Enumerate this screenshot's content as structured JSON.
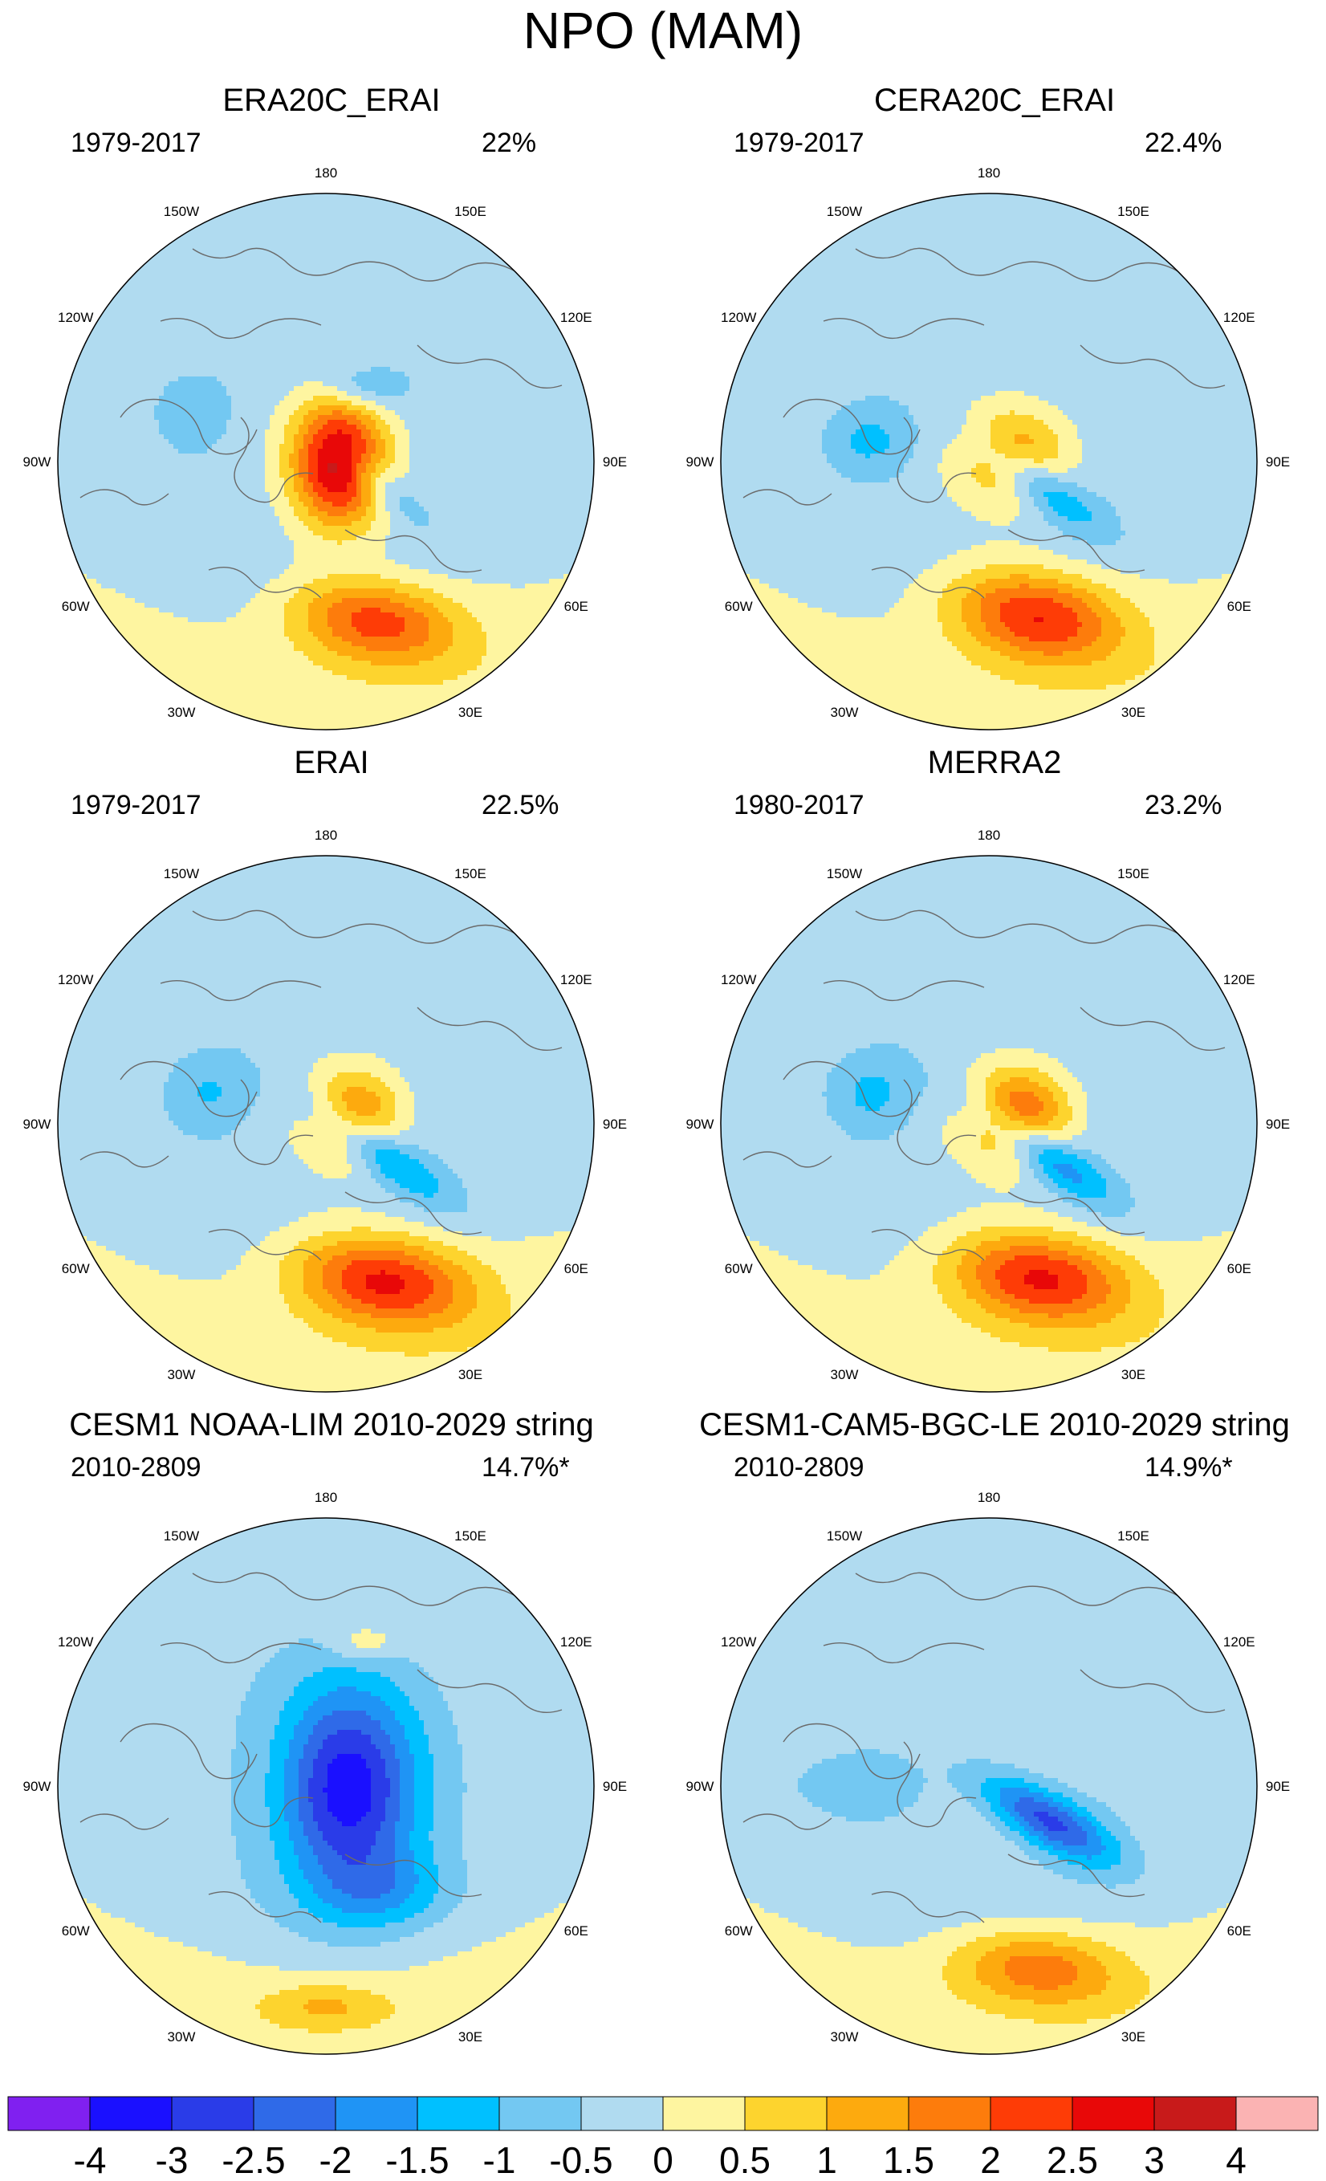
{
  "title": "NPO (MAM)",
  "panels": [
    {
      "title": "ERA20C_ERAI",
      "period": "1979-2017",
      "variance": "22%",
      "blobs": [
        {
          "lon": 163,
          "r": 0.62,
          "v": 2.4,
          "sx": 0.22,
          "sy": 0.11,
          "rot": 8
        },
        {
          "lon": 112,
          "r": 0.2,
          "v": -0.9,
          "sx": 0.14,
          "sy": 0.05,
          "rot": 40
        },
        {
          "lon": 88,
          "r": 0.05,
          "v": 3.4,
          "sx": 0.12,
          "sy": 0.17,
          "rot": 0
        },
        {
          "lon": 25,
          "r": 0.3,
          "v": -1.0,
          "sx": 0.11,
          "sy": 0.06,
          "rot": 0
        },
        {
          "lon": 290,
          "r": 0.55,
          "v": -0.6,
          "sx": 0.1,
          "sy": 0.1,
          "rot": 0
        }
      ]
    },
    {
      "title": "CERA20C_ERAI",
      "period": "1979-2017",
      "variance": "22.4%",
      "blobs": [
        {
          "lon": 163,
          "r": 0.6,
          "v": 2.7,
          "sx": 0.23,
          "sy": 0.12,
          "rot": 10
        },
        {
          "lon": 115,
          "r": 0.2,
          "v": -1.4,
          "sx": 0.2,
          "sy": 0.06,
          "rot": 35
        },
        {
          "lon": 75,
          "r": 0.1,
          "v": 1.6,
          "sx": 0.14,
          "sy": 0.12,
          "rot": 0
        },
        {
          "lon": 280,
          "r": 0.45,
          "v": -0.8,
          "sx": 0.12,
          "sy": 0.09,
          "rot": 0
        }
      ]
    },
    {
      "title": "ERAI",
      "period": "1979-2017",
      "variance": "22.5%",
      "blobs": [
        {
          "lon": 160,
          "r": 0.62,
          "v": 2.8,
          "sx": 0.24,
          "sy": 0.12,
          "rot": 8
        },
        {
          "lon": 118,
          "r": 0.22,
          "v": -1.5,
          "sx": 0.22,
          "sy": 0.06,
          "rot": 35
        },
        {
          "lon": 72,
          "r": 0.12,
          "v": 1.7,
          "sx": 0.12,
          "sy": 0.12,
          "rot": 0
        },
        {
          "lon": 285,
          "r": 0.45,
          "v": -0.7,
          "sx": 0.12,
          "sy": 0.1,
          "rot": 0
        }
      ]
    },
    {
      "title": "MERRA2",
      "period": "1980-2017",
      "variance": "23.2%",
      "blobs": [
        {
          "lon": 162,
          "r": 0.6,
          "v": 2.8,
          "sx": 0.24,
          "sy": 0.12,
          "rot": 8
        },
        {
          "lon": 118,
          "r": 0.22,
          "v": -1.8,
          "sx": 0.22,
          "sy": 0.06,
          "rot": 35
        },
        {
          "lon": 75,
          "r": 0.12,
          "v": 2.3,
          "sx": 0.13,
          "sy": 0.12,
          "rot": 0
        },
        {
          "lon": 285,
          "r": 0.45,
          "v": -0.8,
          "sx": 0.12,
          "sy": 0.1,
          "rot": 0
        }
      ]
    },
    {
      "title": "CESM1 NOAA-LIM 2010-2029 string",
      "period": "2010-2809",
      "variance": "14.7%*",
      "blobs": [
        {
          "lon": 180,
          "r": 0.82,
          "v": 0.9,
          "sx": 0.16,
          "sy": 0.06,
          "rot": 0
        },
        {
          "lon": 95,
          "r": 0.08,
          "v": -3.3,
          "sx": 0.18,
          "sy": 0.26,
          "rot": 0
        },
        {
          "lon": 150,
          "r": 0.45,
          "v": -0.9,
          "sx": 0.18,
          "sy": 0.1,
          "rot": 0
        },
        {
          "lon": 15,
          "r": 0.55,
          "v": 0.8,
          "sx": 0.09,
          "sy": 0.05,
          "rot": 0
        }
      ]
    },
    {
      "title": "CESM1-CAM5-BGC-LE 2010-2029 string",
      "period": "2010-2809",
      "variance": "14.9%*",
      "blobs": [
        {
          "lon": 165,
          "r": 0.7,
          "v": 1.8,
          "sx": 0.22,
          "sy": 0.1,
          "rot": 5
        },
        {
          "lon": 120,
          "r": 0.25,
          "v": -2.4,
          "sx": 0.2,
          "sy": 0.07,
          "rot": 30
        },
        {
          "lon": 270,
          "r": 0.5,
          "v": -0.6,
          "sx": 0.2,
          "sy": 0.08,
          "rot": 0
        }
      ]
    }
  ],
  "longitude_labels": [
    {
      "lon": 180,
      "text": "180"
    },
    {
      "lon": 150,
      "text": "150E"
    },
    {
      "lon": 120,
      "text": "120E"
    },
    {
      "lon": 90,
      "text": "90E"
    },
    {
      "lon": 60,
      "text": "60E"
    },
    {
      "lon": 30,
      "text": "30E"
    },
    {
      "lon": 0,
      "text": "0"
    },
    {
      "lon": -30,
      "text": "30W"
    },
    {
      "lon": -60,
      "text": "60W"
    },
    {
      "lon": -90,
      "text": "90W"
    },
    {
      "lon": -120,
      "text": "120W"
    },
    {
      "lon": -150,
      "text": "150W"
    }
  ],
  "colorbar": {
    "colors": [
      "#8020f0",
      "#1a10ff",
      "#2a3ce8",
      "#2f6ae8",
      "#1f94f5",
      "#00c0ff",
      "#73c8f2",
      "#b0dbf0",
      "#fef5a0",
      "#fdd42e",
      "#fdaa0e",
      "#fd7c0c",
      "#fe3c06",
      "#e80808",
      "#c81a1a",
      "#fbb3b3"
    ],
    "labels": [
      "-4",
      "-3",
      "-2.5",
      "-2",
      "-1.5",
      "-1",
      "-0.5",
      "0",
      "0.5",
      "1",
      "1.5",
      "2",
      "2.5",
      "3",
      "4"
    ],
    "levels": [
      -4,
      -3,
      -2.5,
      -2,
      -1.5,
      -1,
      -0.5,
      0,
      0.5,
      1,
      1.5,
      2,
      2.5,
      3,
      4
    ]
  }
}
